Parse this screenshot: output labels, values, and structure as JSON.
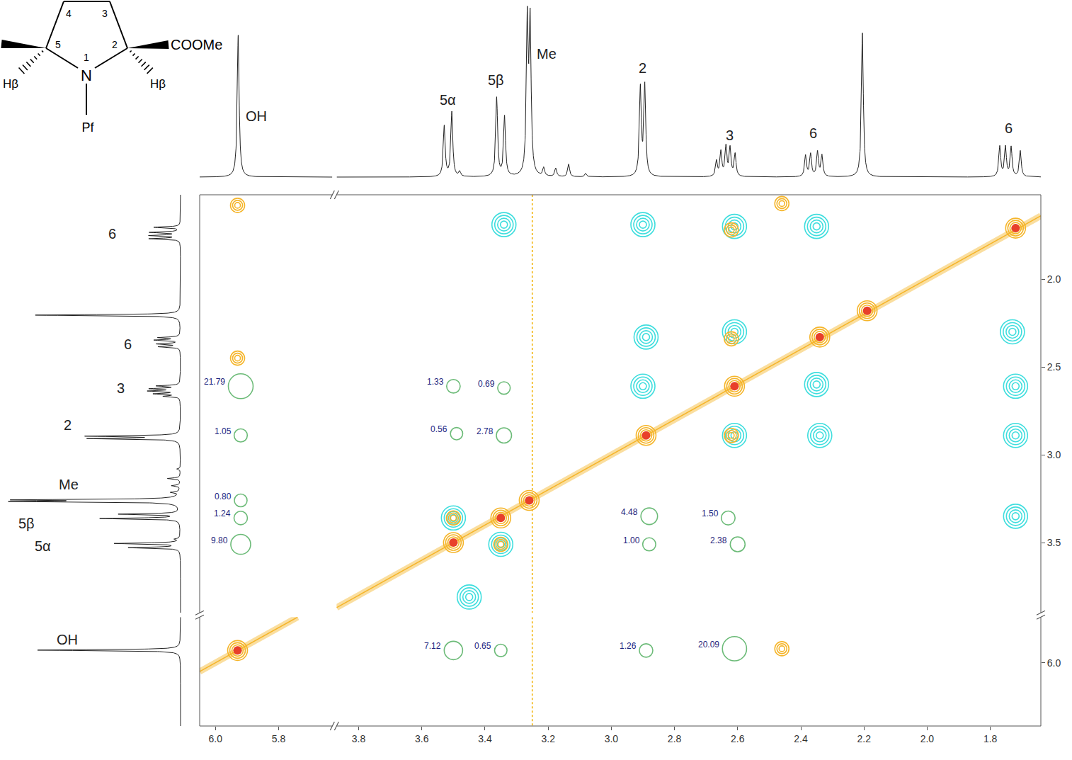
{
  "chart_data": {
    "type": "scatter",
    "xlim": [
      6.05,
      1.64
    ],
    "x_break": [
      5.63,
      3.87
    ],
    "xticks": [
      {
        "value": 6,
        "label": "6.0"
      },
      {
        "value": 5.8,
        "label": "5.8"
      },
      {
        "value": 3.8,
        "label": "3.8"
      },
      {
        "value": 3.6,
        "label": "3.6"
      },
      {
        "value": 3.4,
        "label": "3.4"
      },
      {
        "value": 3.2,
        "label": "3.2"
      },
      {
        "value": 3,
        "label": "3.0"
      },
      {
        "value": 2.8,
        "label": "2.8"
      },
      {
        "value": 2.6,
        "label": "2.6"
      },
      {
        "value": 2.4,
        "label": "2.4"
      },
      {
        "value": 2.2,
        "label": "2.2"
      },
      {
        "value": 2,
        "label": "2.0"
      },
      {
        "value": 1.8,
        "label": "1.8"
      }
    ],
    "ylim": [
      1.52,
      6.36
    ],
    "y_break": [
      3.9,
      5.74
    ],
    "yticks": [
      {
        "value": 2,
        "label": "2.0"
      },
      {
        "value": 2.5,
        "label": "2.5"
      },
      {
        "value": 3,
        "label": "3.0"
      },
      {
        "value": 3.5,
        "label": "3.5"
      },
      {
        "value": 6,
        "label": "6.0"
      }
    ],
    "grid": false,
    "data_labels": true,
    "cross_peaks": {
      "color": "#2e9e3e",
      "x": [
        5.92,
        5.92,
        5.92,
        5.92,
        5.92,
        3.5,
        3.34,
        3.49,
        3.34,
        2.88,
        2.63,
        2.88,
        2.6,
        3.5,
        3.35,
        2.89,
        2.61
      ],
      "y": [
        2.61,
        2.89,
        3.26,
        3.36,
        3.51,
        2.61,
        2.62,
        2.88,
        2.89,
        3.35,
        3.36,
        3.51,
        3.51,
        5.93,
        5.93,
        5.93,
        5.92
      ],
      "values": [
        21.79,
        1.05,
        0.8,
        1.24,
        9.8,
        1.33,
        0.69,
        0.56,
        2.78,
        4.48,
        1.5,
        1.0,
        2.38,
        7.12,
        0.65,
        1.26,
        20.09
      ],
      "value_labels": [
        "21.79",
        "1.05",
        "0.80",
        "1.24",
        "9.80",
        "1.33",
        "0.69",
        "0.56",
        "2.78",
        "4.48",
        "1.50",
        "1.00",
        "2.38",
        "7.12",
        "0.65",
        "1.26",
        "20.09"
      ]
    },
    "diagonal_peaks": {
      "color": "#e8402a",
      "x": [
        5.93,
        3.5,
        3.35,
        3.26,
        2.89,
        2.61,
        2.34,
        2.19,
        1.72
      ],
      "y": [
        5.93,
        3.5,
        3.36,
        3.26,
        2.89,
        2.61,
        2.33,
        2.18,
        1.71
      ]
    },
    "positive_peaks": {
      "color": "#f5b52a",
      "x": [
        5.93,
        2.46,
        5.93,
        2.46,
        2.62,
        2.62,
        2.62,
        3.5,
        3.35
      ],
      "y": [
        1.58,
        1.57,
        2.45,
        5.92,
        1.72,
        2.34,
        2.89,
        3.36,
        3.51
      ]
    },
    "negative_peaks": {
      "color": "#3fdede",
      "x": [
        3.34,
        2.9,
        2.61,
        2.35,
        1.73,
        2.61,
        2.35,
        1.72,
        1.72,
        2.34,
        2.61,
        2.9,
        2.89,
        3.5,
        3.35,
        1.72,
        3.45
      ],
      "y": [
        1.69,
        1.69,
        1.7,
        1.7,
        2.3,
        2.3,
        2.6,
        2.61,
        2.89,
        2.89,
        2.89,
        2.61,
        2.33,
        3.36,
        3.51,
        3.35,
        3.81
      ]
    },
    "t1_noise": {
      "x": 3.25,
      "color": "#f5c542"
    },
    "spectrum": {
      "color": "#222222",
      "height_lim": [
        -5,
        250
      ],
      "peaks_x": [
        5.928,
        3.529,
        3.505,
        3.48,
        3.363,
        3.338,
        3.266,
        3.257,
        3.214,
        3.176,
        3.135,
        3.081,
        2.908,
        2.894,
        2.667,
        2.653,
        2.637,
        2.624,
        2.608,
        2.385,
        2.369,
        2.347,
        2.333,
        2.205,
        1.77,
        1.752,
        1.734,
        1.705
      ],
      "heights": [
        202,
        72,
        92,
        7,
        112,
        85,
        215,
        212,
        12,
        12,
        18,
        5,
        125,
        128,
        22,
        35,
        42,
        40,
        32,
        30,
        32,
        35,
        30,
        205,
        43,
        42,
        42,
        37
      ],
      "top_labels": [
        {
          "text": "OH",
          "x": 5.87,
          "height": 87
        },
        {
          "text": "5α",
          "x": 3.517,
          "height": 110
        },
        {
          "text": "5β",
          "x": 3.366,
          "height": 138
        },
        {
          "text": "Me",
          "x": 3.205,
          "height": 175
        },
        {
          "text": "2",
          "x": 2.9,
          "height": 155
        },
        {
          "text": "3",
          "x": 2.626,
          "height": 60
        },
        {
          "text": "6",
          "x": 2.36,
          "height": 63
        },
        {
          "text": "6",
          "x": 1.741,
          "height": 70
        }
      ],
      "side_labels": [
        {
          "text": "6",
          "y": 1.74,
          "height": 97
        },
        {
          "text": "6",
          "y": 2.37,
          "height": 75
        },
        {
          "text": "3",
          "y": 2.62,
          "height": 85
        },
        {
          "text": "2",
          "y": 2.83,
          "height": 160
        },
        {
          "text": "Me",
          "y": 3.17,
          "height": 158
        },
        {
          "text": "5β",
          "y": 3.39,
          "height": 218
        },
        {
          "text": "5α",
          "y": 3.52,
          "height": 195
        },
        {
          "text": "OH",
          "y": 5.87,
          "height": 160
        }
      ]
    },
    "structure": {
      "ring_numbers": [
        "4",
        "3",
        "5",
        "1",
        "2"
      ],
      "atom": "N",
      "substituents": [
        "COOMe",
        "Hβ",
        "Hβ",
        "Pf"
      ]
    }
  }
}
